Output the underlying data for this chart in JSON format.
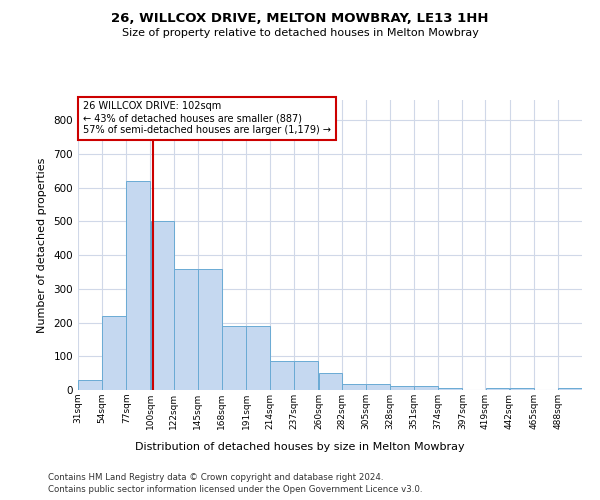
{
  "title1": "26, WILLCOX DRIVE, MELTON MOWBRAY, LE13 1HH",
  "title2": "Size of property relative to detached houses in Melton Mowbray",
  "xlabel": "Distribution of detached houses by size in Melton Mowbray",
  "ylabel": "Number of detached properties",
  "footer1": "Contains HM Land Registry data © Crown copyright and database right 2024.",
  "footer2": "Contains public sector information licensed under the Open Government Licence v3.0.",
  "bins": [
    31,
    54,
    77,
    100,
    122,
    145,
    168,
    191,
    214,
    237,
    260,
    282,
    305,
    328,
    351,
    374,
    397,
    419,
    442,
    465,
    488
  ],
  "values": [
    30,
    220,
    620,
    500,
    360,
    360,
    190,
    190,
    85,
    85,
    50,
    18,
    18,
    12,
    12,
    6,
    0,
    6,
    6,
    0,
    6
  ],
  "bar_color": "#c5d8f0",
  "bar_edge_color": "#6aaad4",
  "property_size": 102,
  "vline_color": "#cc0000",
  "annotation_text_line1": "26 WILLCOX DRIVE: 102sqm",
  "annotation_text_line2": "← 43% of detached houses are smaller (887)",
  "annotation_text_line3": "57% of semi-detached houses are larger (1,179) →",
  "ylim": [
    0,
    860
  ],
  "yticks": [
    0,
    100,
    200,
    300,
    400,
    500,
    600,
    700,
    800
  ],
  "background_color": "#ffffff",
  "grid_color": "#d0d8e8"
}
